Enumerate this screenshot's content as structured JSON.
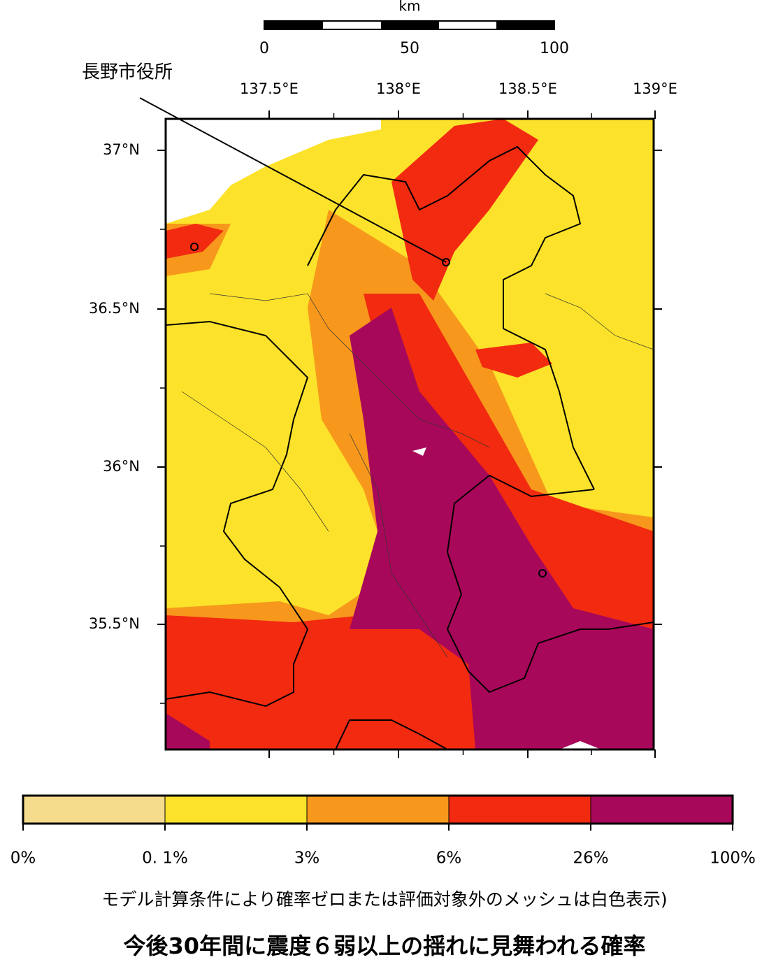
{
  "scale_bar": {
    "unit": "km",
    "ticks": [
      "0",
      "50",
      "100"
    ]
  },
  "callout": "長野市役所",
  "longitude_labels": [
    "137.5°E",
    "138°E",
    "138.5°E",
    "139°E"
  ],
  "latitude_labels": [
    "37°N",
    "36.5°N",
    "36°N",
    "35.5°N"
  ],
  "legend": {
    "colors": [
      "#f5dc8c",
      "#fce22a",
      "#f7981c",
      "#f22a10",
      "#a8085a"
    ],
    "labels": [
      "0%",
      "0. 1%",
      "3%",
      "6%",
      "26%",
      "100%"
    ]
  },
  "note": "モデル計算条件により確率ゼロまたは評価対象外のメッシュは白色表示)",
  "title": "今後30年間に震度６弱以上の揺れに見舞われる確率"
}
